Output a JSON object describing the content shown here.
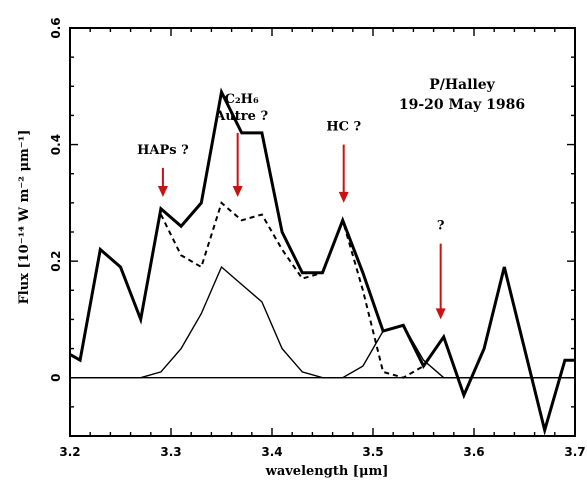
{
  "chart_data": {
    "type": "line",
    "title": "P/Halley",
    "subtitle": "19-20 May 1986",
    "xlabel": "wavelength [μm]",
    "ylabel": "Flux [10⁻¹⁴ W m⁻² μm⁻¹]",
    "xlim": [
      3.2,
      3.7
    ],
    "ylim": [
      -0.1,
      0.6
    ],
    "xticks": [
      "3.2",
      "3.3",
      "3.4",
      "3.5",
      "3.6",
      "3.7"
    ],
    "yticks": [
      "0",
      "0.2",
      "0.4",
      "0.6"
    ],
    "grid": false,
    "series": [
      {
        "style": "solid-thick",
        "x": [
          3.2,
          3.21,
          3.23,
          3.25,
          3.27,
          3.29,
          3.31,
          3.33,
          3.35,
          3.37,
          3.39,
          3.41,
          3.43,
          3.45,
          3.47,
          3.49,
          3.51,
          3.53,
          3.55,
          3.57,
          3.59,
          3.61,
          3.63,
          3.65,
          3.67,
          3.69,
          3.7
        ],
        "y": [
          0.04,
          0.03,
          0.22,
          0.19,
          0.1,
          0.29,
          0.26,
          0.3,
          0.49,
          0.42,
          0.42,
          0.25,
          0.18,
          0.18,
          0.27,
          0.18,
          0.08,
          0.09,
          0.02,
          0.07,
          -0.03,
          0.05,
          0.19,
          0.05,
          -0.09,
          0.03,
          0.03
        ]
      },
      {
        "style": "dashed",
        "x": [
          3.29,
          3.31,
          3.33,
          3.35,
          3.37,
          3.39,
          3.41,
          3.43,
          3.45,
          3.47,
          3.49,
          3.51,
          3.53,
          3.55
        ],
        "y": [
          0.28,
          0.21,
          0.19,
          0.3,
          0.27,
          0.28,
          0.22,
          0.17,
          0.18,
          0.27,
          0.15,
          0.01,
          0.0,
          0.02
        ]
      },
      {
        "style": "solid-thin",
        "x": [
          3.2,
          3.27,
          3.29,
          3.31,
          3.33,
          3.35,
          3.37,
          3.39,
          3.41,
          3.43,
          3.45,
          3.47,
          3.49,
          3.51,
          3.53,
          3.55,
          3.57,
          3.7
        ],
        "y": [
          0.0,
          0.0,
          0.01,
          0.05,
          0.11,
          0.19,
          0.16,
          0.13,
          0.05,
          0.01,
          0.0,
          0.0,
          0.02,
          0.08,
          0.09,
          0.03,
          0.0,
          0.0
        ]
      }
    ],
    "annotations": [
      {
        "label": "HAPs ?",
        "x": 3.292,
        "y_arrow_top": 0.36,
        "y_arrow_tip": 0.31
      },
      {
        "label_line1": "C₂H₆",
        "label_line2": "Autre ?",
        "x": 3.366,
        "y_arrow_top": 0.42,
        "y_arrow_tip": 0.31
      },
      {
        "label": "HC ?",
        "x": 3.471,
        "y_arrow_top": 0.4,
        "y_arrow_tip": 0.3
      },
      {
        "label": "?",
        "x": 3.567,
        "y_arrow_top": 0.23,
        "y_arrow_tip": 0.1
      }
    ],
    "annotation_color": "#cc1111"
  }
}
